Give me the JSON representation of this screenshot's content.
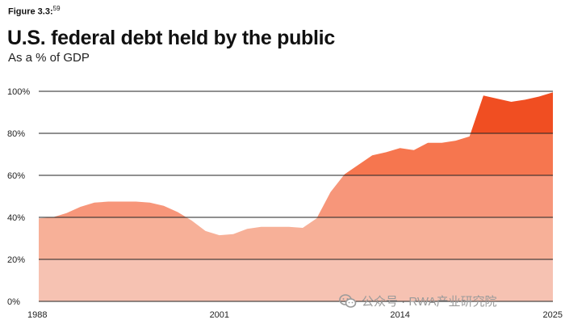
{
  "figure": {
    "label": "Figure 3.3:",
    "footnote": "59"
  },
  "watermark": {
    "text": "公众号 · RWA产业研究院"
  },
  "chart_data": {
    "type": "area",
    "title": "U.S. federal debt held by the public",
    "subtitle": "As a % of GDP",
    "xlabel": "",
    "ylabel": "",
    "xlim": [
      1988,
      2025
    ],
    "ylim": [
      0,
      100
    ],
    "x_ticks": [
      "1988",
      "2001",
      "2014",
      "2025"
    ],
    "y_ticks": [
      "0%",
      "20%",
      "40%",
      "60%",
      "80%",
      "100%"
    ],
    "grid": true,
    "series": [
      {
        "x": [
          1988,
          1989,
          1990,
          1991,
          1992,
          1993,
          1994,
          1995,
          1996,
          1997,
          1998,
          1999,
          2000,
          2001,
          2002,
          2003,
          2004,
          2005,
          2006,
          2007,
          2008,
          2009,
          2010,
          2011,
          2012,
          2013,
          2014,
          2015,
          2016,
          2017,
          2018,
          2019,
          2020,
          2021,
          2022,
          2023,
          2024,
          2025
        ],
        "y": [
          39.5,
          40,
          42,
          45,
          47,
          47.5,
          47.5,
          47.5,
          47,
          45.5,
          42.5,
          38.5,
          33.5,
          31.5,
          32,
          34.5,
          35.5,
          35.5,
          35.5,
          35,
          39.5,
          52,
          60.5,
          65,
          69.5,
          71,
          73,
          72,
          75.5,
          75.5,
          76.5,
          78.5,
          98,
          96.5,
          95,
          96,
          97.5,
          99.5
        ]
      }
    ],
    "colors": {
      "band_0_20": "#f6c2b2",
      "band_20_40": "#f7b098",
      "band_40_60": "#f7967a",
      "band_60_80": "#f6764f",
      "band_80_100": "#f04e22"
    }
  }
}
